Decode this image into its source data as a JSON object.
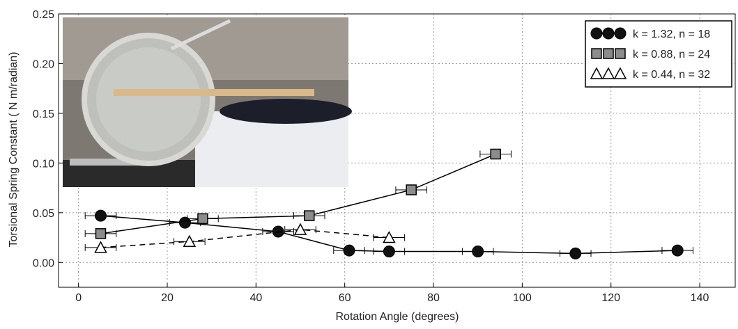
{
  "chart_data": {
    "type": "line",
    "xlabel": "Rotation Angle (degrees)",
    "ylabel": "Torsional Spring Constant ( N m/radian)",
    "xlim": [
      -4.5,
      148
    ],
    "ylim": [
      -0.025,
      0.25
    ],
    "xticks": [
      0,
      20,
      40,
      60,
      80,
      100,
      120,
      140
    ],
    "yticks": [
      {
        "value": 0,
        "label": "0.00"
      },
      0.05,
      {
        "value": 0.1,
        "label": "0.10"
      },
      0.15,
      {
        "value": 0.2,
        "label": "0.20"
      },
      0.25
    ],
    "grid": true,
    "legend": "upper right",
    "series": [
      {
        "name": "k = 1.32, n = 18",
        "color": "#111111",
        "marker": "circle",
        "linestyle": "solid",
        "x": [
          5,
          24,
          45,
          61,
          70,
          90,
          112,
          135
        ],
        "values": [
          0.047,
          0.04,
          0.031,
          0.012,
          0.011,
          0.011,
          0.009,
          0.012
        ],
        "xerr": [
          3.5,
          3.5,
          3.5,
          3.5,
          3.5,
          3.5,
          3.5,
          3.5
        ]
      },
      {
        "name": "k = 0.88, n = 24",
        "color": "#8c8c8c",
        "marker": "square",
        "linestyle": "solid",
        "x": [
          5,
          28,
          52,
          75,
          94
        ],
        "values": [
          0.029,
          0.044,
          0.047,
          0.073,
          0.109
        ],
        "xerr": [
          3.5,
          3.5,
          3.5,
          3.5,
          3.5
        ]
      },
      {
        "name": "k = 0.44, n = 32",
        "color": "#ffffff",
        "marker": "triangle",
        "linestyle": "dashed",
        "x": [
          5,
          25,
          50,
          70
        ],
        "values": [
          0.015,
          0.021,
          0.033,
          0.025
        ],
        "xerr": [
          3.5,
          3.5,
          3.5,
          3.5
        ]
      }
    ]
  }
}
